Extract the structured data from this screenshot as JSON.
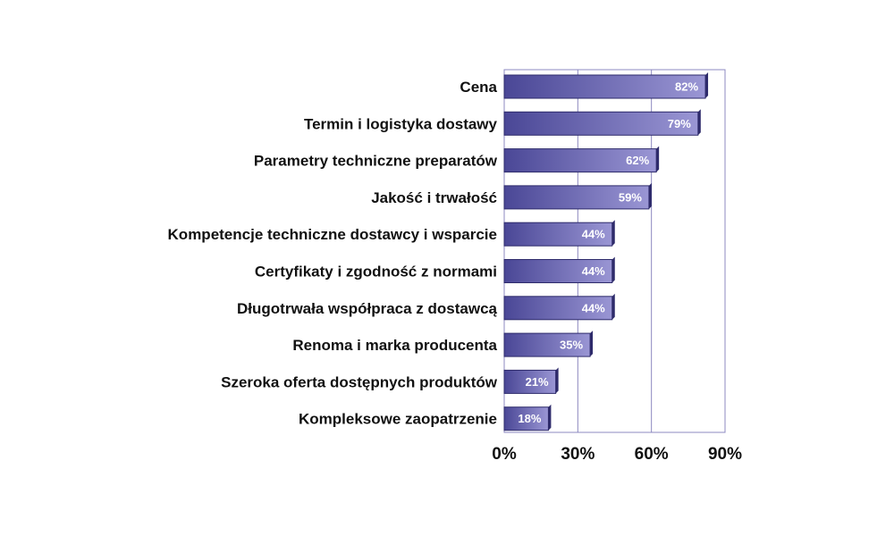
{
  "chart_data": {
    "type": "bar",
    "orientation": "horizontal",
    "categories": [
      "Cena",
      "Termin i logistyka dostawy",
      "Parametry techniczne preparatów",
      "Jakość i trwałość",
      "Kompetencje techniczne dostawcy i wsparcie",
      "Certyfikaty i zgodność z normami",
      "Długotrwała współpraca z dostawcą",
      "Renoma i marka producenta",
      "Szeroka oferta dostępnych produktów",
      "Kompleksowe zaopatrzenie"
    ],
    "values": [
      82,
      79,
      62,
      59,
      44,
      44,
      44,
      35,
      21,
      18
    ],
    "value_labels": [
      "82%",
      "79%",
      "62%",
      "59%",
      "44%",
      "44%",
      "44%",
      "35%",
      "21%",
      "18%"
    ],
    "x_ticks": [
      0,
      30,
      60,
      90
    ],
    "x_tick_labels": [
      "0%",
      "30%",
      "60%",
      "90%"
    ],
    "xlim": [
      0,
      90
    ],
    "grid": true,
    "title": "",
    "xlabel": "",
    "ylabel": "",
    "colors": {
      "bar_light": "#9a96d4",
      "bar_dark": "#4a4796",
      "bar_edge": "#2e2b6b",
      "grid": "#8c88c0"
    }
  }
}
